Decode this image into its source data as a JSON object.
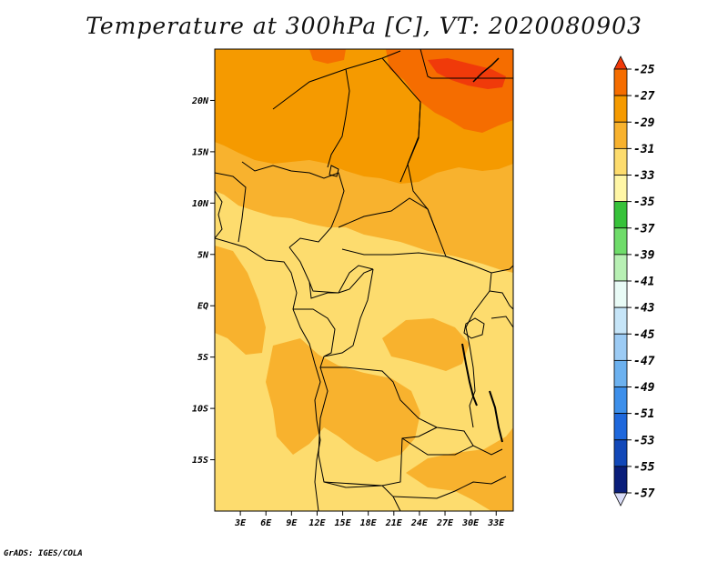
{
  "title": "Temperature at 300hPa [C], VT: 2020080903",
  "credit": "GrADS: IGES/COLA",
  "map": {
    "lon_range": [
      0,
      35
    ],
    "lat_range": [
      -20,
      25
    ],
    "lat_ticks": [
      {
        "value": 20,
        "label": "20N"
      },
      {
        "value": 15,
        "label": "15N"
      },
      {
        "value": 10,
        "label": "10N"
      },
      {
        "value": 5,
        "label": "5N"
      },
      {
        "value": 0,
        "label": "EQ"
      },
      {
        "value": -5,
        "label": "5S"
      },
      {
        "value": -10,
        "label": "10S"
      },
      {
        "value": -15,
        "label": "15S"
      }
    ],
    "lon_ticks": [
      {
        "value": 3,
        "label": "3E"
      },
      {
        "value": 6,
        "label": "6E"
      },
      {
        "value": 9,
        "label": "9E"
      },
      {
        "value": 12,
        "label": "12E"
      },
      {
        "value": 15,
        "label": "15E"
      },
      {
        "value": 18,
        "label": "18E"
      },
      {
        "value": 21,
        "label": "21E"
      },
      {
        "value": 24,
        "label": "24E"
      },
      {
        "value": 27,
        "label": "27E"
      },
      {
        "value": 30,
        "label": "30E"
      },
      {
        "value": 33,
        "label": "33E"
      }
    ]
  },
  "colorbar": {
    "levels": [
      "-25",
      "-27",
      "-29",
      "-31",
      "-33",
      "-35",
      "-37",
      "-39",
      "-41",
      "-43",
      "-45",
      "-47",
      "-49",
      "-51",
      "-53",
      "-55",
      "-57"
    ],
    "colors": [
      "#f03a0a",
      "#f56d00",
      "#f59a00",
      "#f8b22e",
      "#fddc6e",
      "#fff6a6",
      "#37c23a",
      "#6fdc6a",
      "#b8f0b4",
      "#e9fbf6",
      "#c6e5f8",
      "#9ccbf4",
      "#6cb1ef",
      "#3d8fea",
      "#1f68dc",
      "#1248b8",
      "#0a1e7a",
      "#d9dcf7"
    ]
  },
  "field_colors": {
    "c25": "#f03a0a",
    "c27": "#f56d00",
    "c29": "#f59a00",
    "c31": "#f8b22e",
    "c33": "#fddc6e",
    "c35": "#fff6a6"
  }
}
